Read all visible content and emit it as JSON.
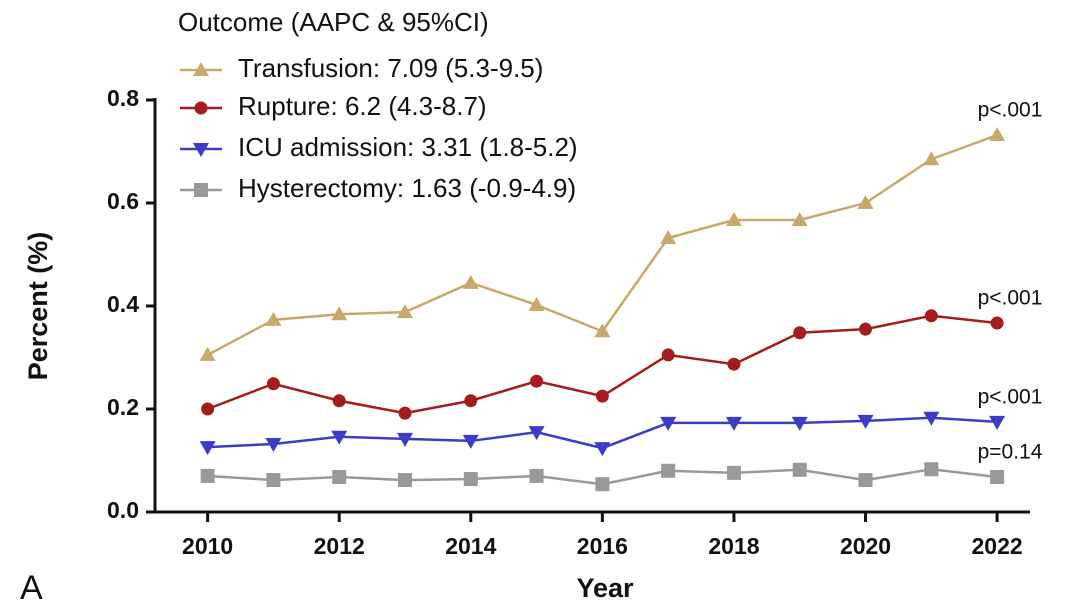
{
  "chart_data": {
    "type": "line",
    "panel_label": "A",
    "legend_title": "Outcome (AAPC & 95%CI)",
    "x_label": "Year",
    "y_label": "Percent  (%)",
    "x": [
      2010,
      2011,
      2012,
      2013,
      2014,
      2015,
      2016,
      2017,
      2018,
      2019,
      2020,
      2021,
      2022
    ],
    "xlim": [
      2009.2,
      2022.5
    ],
    "xticks": [
      2010,
      2012,
      2014,
      2016,
      2018,
      2020,
      2022
    ],
    "ylim": [
      0,
      0.8
    ],
    "yticks": [
      {
        "value": 0,
        "label": "0.0"
      },
      0.2,
      0.4,
      0.6,
      0.8
    ],
    "grid": false,
    "legend": "upper left",
    "series": [
      {
        "name": "Transfusion: 7.09 (5.3-9.5)",
        "color": "#c9a96b",
        "marker": "triangle-up",
        "annotation": "p<.001",
        "values": [
          0.305,
          0.373,
          0.384,
          0.388,
          0.445,
          0.402,
          0.351,
          0.532,
          0.567,
          0.567,
          0.6,
          0.685,
          0.732
        ]
      },
      {
        "name": "Rupture: 6.2 (4.3-8.7)",
        "color": "#a51c1c",
        "marker": "circle",
        "annotation": "p<.001",
        "values": [
          0.2,
          0.249,
          0.216,
          0.192,
          0.216,
          0.254,
          0.225,
          0.305,
          0.287,
          0.348,
          0.355,
          0.381,
          0.367
        ]
      },
      {
        "name": "ICU admission: 3.31 (1.8-5.2)",
        "color": "#3c3cc4",
        "marker": "triangle-down",
        "annotation": "p<.001",
        "values": [
          0.126,
          0.132,
          0.146,
          0.142,
          0.138,
          0.155,
          0.124,
          0.173,
          0.173,
          0.173,
          0.177,
          0.183,
          0.175
        ]
      },
      {
        "name": "Hysterectomy: 1.63 (-0.9-4.9)",
        "color": "#999999",
        "marker": "square",
        "annotation": "p=0.14",
        "values": [
          0.07,
          0.062,
          0.068,
          0.062,
          0.064,
          0.07,
          0.054,
          0.08,
          0.076,
          0.082,
          0.062,
          0.083,
          0.068
        ]
      }
    ]
  }
}
